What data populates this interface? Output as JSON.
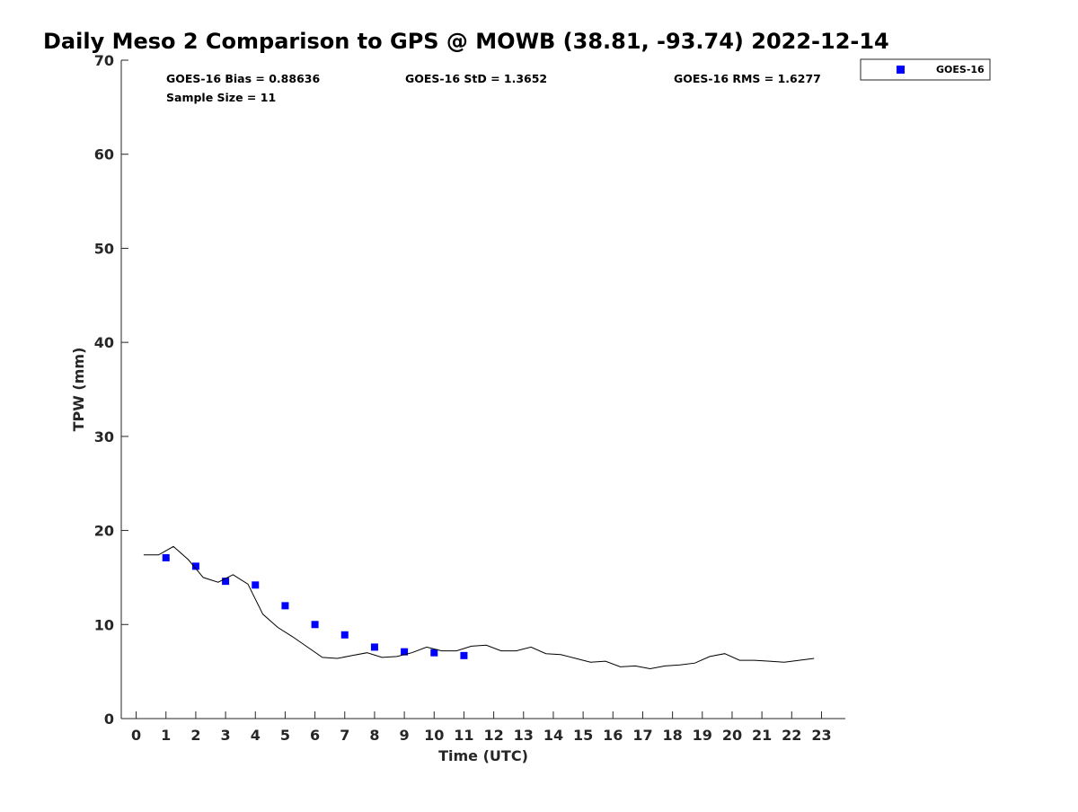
{
  "chart_data": {
    "type": "scatter",
    "title": "Daily Meso 2 Comparison to GPS @ MOWB (38.81, -93.74) 2022-12-14",
    "xlabel": "Time (UTC)",
    "ylabel": "TPW (mm)",
    "xlim": [
      -0.5,
      23.8
    ],
    "ylim": [
      0,
      70
    ],
    "xticks": [
      0,
      1,
      2,
      3,
      4,
      5,
      6,
      7,
      8,
      9,
      10,
      11,
      12,
      13,
      14,
      15,
      16,
      17,
      18,
      19,
      20,
      21,
      22,
      23
    ],
    "yticks": [
      0,
      10,
      20,
      30,
      40,
      50,
      60,
      70
    ],
    "grid": false,
    "legend_position": "top-right-outside",
    "stats": {
      "bias_text": "GOES-16 Bias = 0.88636",
      "std_text": "GOES-16 StD = 1.3652",
      "rms_text": "GOES-16 RMS = 1.6277",
      "sample_text": "Sample Size = 11"
    },
    "series": [
      {
        "name": "GOES-16",
        "style": "marker",
        "marker": "square",
        "color": "#0000ff",
        "x": [
          1,
          2,
          3,
          4,
          5,
          6,
          7,
          8,
          9,
          10,
          11
        ],
        "y": [
          17.1,
          16.2,
          14.6,
          14.2,
          12.0,
          10.0,
          8.9,
          7.6,
          7.1,
          7.0,
          6.7
        ]
      },
      {
        "style": "line",
        "color": "#000000",
        "x": [
          0.25,
          0.75,
          1.25,
          1.75,
          2.25,
          2.75,
          3.25,
          3.75,
          4.25,
          4.75,
          5.25,
          5.75,
          6.25,
          6.75,
          7.25,
          7.75,
          8.25,
          8.75,
          9.25,
          9.75,
          10.25,
          10.75,
          11.25,
          11.75,
          12.25,
          12.75,
          13.25,
          13.75,
          14.25,
          14.75,
          15.25,
          15.75,
          16.25,
          16.75,
          17.25,
          17.75,
          18.25,
          18.75,
          19.25,
          19.75,
          20.25,
          20.75,
          21.25,
          21.75,
          22.25,
          22.75
        ],
        "y": [
          17.4,
          17.4,
          18.3,
          16.9,
          15.0,
          14.5,
          15.3,
          14.3,
          11.1,
          9.7,
          8.7,
          7.6,
          6.5,
          6.4,
          6.7,
          7.0,
          6.5,
          6.6,
          7.0,
          7.6,
          7.2,
          7.2,
          7.7,
          7.8,
          7.2,
          7.2,
          7.6,
          6.9,
          6.8,
          6.4,
          6.0,
          6.1,
          5.5,
          5.6,
          5.3,
          5.6,
          5.7,
          5.9,
          6.6,
          6.9,
          6.2,
          6.2,
          6.1,
          6.0,
          6.2,
          6.4
        ]
      }
    ],
    "colors": {
      "axis": "#262626",
      "title": "#000000",
      "legend_border": "#262626"
    }
  }
}
